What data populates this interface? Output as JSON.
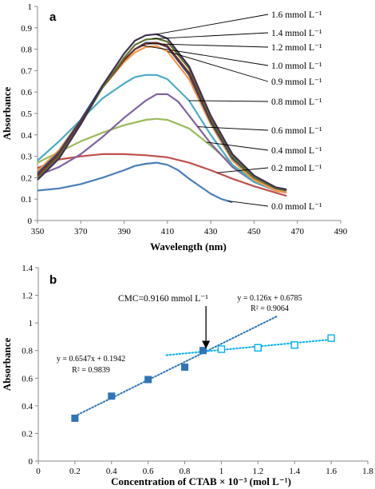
{
  "chart_data": [
    {
      "type": "line",
      "panel_label": "a",
      "xlabel": "Wavelength (nm)",
      "ylabel": "Absorbance",
      "xlim": [
        350,
        490
      ],
      "ylim": [
        0,
        1
      ],
      "x_ticks": [
        350,
        370,
        390,
        410,
        430,
        450,
        470,
        490
      ],
      "y_ticks": [
        0,
        0.1,
        0.2,
        0.3,
        0.4,
        0.5,
        0.6,
        0.7,
        0.8,
        0.9,
        1
      ],
      "grid": false,
      "series": [
        {
          "name": "0.0 mmol L⁻¹",
          "color": "#4a7ebb",
          "points": [
            [
              350,
              0.14
            ],
            [
              360,
              0.15
            ],
            [
              370,
              0.17
            ],
            [
              380,
              0.2
            ],
            [
              390,
              0.235
            ],
            [
              395,
              0.255
            ],
            [
              400,
              0.265
            ],
            [
              405,
              0.27
            ],
            [
              410,
              0.26
            ],
            [
              415,
              0.235
            ],
            [
              420,
              0.195
            ],
            [
              425,
              0.16
            ],
            [
              430,
              0.125
            ],
            [
              435,
              0.1
            ],
            [
              440,
              0.085
            ]
          ]
        },
        {
          "name": "0.2 mmol L⁻¹",
          "color": "#c0504d",
          "points": [
            [
              350,
              0.245
            ],
            [
              360,
              0.285
            ],
            [
              370,
              0.3
            ],
            [
              380,
              0.31
            ],
            [
              390,
              0.31
            ],
            [
              400,
              0.305
            ],
            [
              410,
              0.295
            ],
            [
              420,
              0.27
            ],
            [
              430,
              0.235
            ],
            [
              440,
              0.195
            ],
            [
              450,
              0.16
            ],
            [
              460,
              0.13
            ],
            [
              465,
              0.115
            ]
          ]
        },
        {
          "name": "0.4 mmol L⁻¹",
          "color": "#9bbb59",
          "points": [
            [
              350,
              0.27
            ],
            [
              360,
              0.32
            ],
            [
              370,
              0.37
            ],
            [
              380,
              0.41
            ],
            [
              390,
              0.445
            ],
            [
              400,
              0.47
            ],
            [
              405,
              0.475
            ],
            [
              410,
              0.47
            ],
            [
              420,
              0.43
            ],
            [
              430,
              0.35
            ],
            [
              440,
              0.26
            ],
            [
              450,
              0.19
            ],
            [
              460,
              0.15
            ],
            [
              465,
              0.14
            ]
          ]
        },
        {
          "name": "0.6 mmol L⁻¹",
          "color": "#8064a2",
          "points": [
            [
              350,
              0.21
            ],
            [
              360,
              0.25
            ],
            [
              370,
              0.31
            ],
            [
              380,
              0.39
            ],
            [
              390,
              0.48
            ],
            [
              400,
              0.56
            ],
            [
              405,
              0.59
            ],
            [
              410,
              0.59
            ],
            [
              415,
              0.555
            ],
            [
              420,
              0.49
            ],
            [
              430,
              0.36
            ],
            [
              440,
              0.25
            ],
            [
              450,
              0.18
            ],
            [
              460,
              0.14
            ],
            [
              465,
              0.13
            ]
          ]
        },
        {
          "name": "0.8 mmol L⁻¹",
          "color": "#4bacc6",
          "points": [
            [
              350,
              0.28
            ],
            [
              360,
              0.37
            ],
            [
              370,
              0.47
            ],
            [
              380,
              0.57
            ],
            [
              390,
              0.64
            ],
            [
              395,
              0.67
            ],
            [
              400,
              0.68
            ],
            [
              405,
              0.68
            ],
            [
              410,
              0.66
            ],
            [
              420,
              0.56
            ],
            [
              430,
              0.4
            ],
            [
              440,
              0.26
            ],
            [
              450,
              0.18
            ],
            [
              460,
              0.14
            ],
            [
              465,
              0.13
            ]
          ]
        },
        {
          "name": "0.9 mmol L⁻¹",
          "color": "#f79646",
          "points": [
            [
              350,
              0.23
            ],
            [
              360,
              0.33
            ],
            [
              370,
              0.47
            ],
            [
              380,
              0.62
            ],
            [
              390,
              0.74
            ],
            [
              395,
              0.785
            ],
            [
              400,
              0.81
            ],
            [
              405,
              0.815
            ],
            [
              410,
              0.79
            ],
            [
              420,
              0.66
            ],
            [
              430,
              0.45
            ],
            [
              440,
              0.28
            ],
            [
              450,
              0.19
            ],
            [
              460,
              0.14
            ],
            [
              465,
              0.13
            ]
          ]
        },
        {
          "name": "1.0 mmol L⁻¹",
          "color": "#2c4d75",
          "points": [
            [
              350,
              0.22
            ],
            [
              360,
              0.32
            ],
            [
              370,
              0.47
            ],
            [
              380,
              0.63
            ],
            [
              390,
              0.75
            ],
            [
              395,
              0.8
            ],
            [
              400,
              0.83
            ],
            [
              405,
              0.83
            ],
            [
              410,
              0.81
            ],
            [
              420,
              0.68
            ],
            [
              430,
              0.46
            ],
            [
              440,
              0.29
            ],
            [
              450,
              0.2
            ],
            [
              460,
              0.15
            ],
            [
              465,
              0.14
            ]
          ]
        },
        {
          "name": "1.2 mmol L⁻¹",
          "color": "#772c2a",
          "points": [
            [
              350,
              0.21
            ],
            [
              360,
              0.31
            ],
            [
              370,
              0.46
            ],
            [
              380,
              0.62
            ],
            [
              390,
              0.75
            ],
            [
              395,
              0.8
            ],
            [
              400,
              0.825
            ],
            [
              405,
              0.83
            ],
            [
              410,
              0.815
            ],
            [
              420,
              0.69
            ],
            [
              430,
              0.47
            ],
            [
              440,
              0.3
            ],
            [
              450,
              0.2
            ],
            [
              460,
              0.15
            ],
            [
              465,
              0.14
            ]
          ]
        },
        {
          "name": "1.4 mmol L⁻¹",
          "color": "#5f7530",
          "points": [
            [
              350,
              0.2
            ],
            [
              360,
              0.3
            ],
            [
              370,
              0.45
            ],
            [
              380,
              0.62
            ],
            [
              390,
              0.76
            ],
            [
              395,
              0.82
            ],
            [
              400,
              0.845
            ],
            [
              405,
              0.85
            ],
            [
              410,
              0.835
            ],
            [
              420,
              0.71
            ],
            [
              430,
              0.48
            ],
            [
              440,
              0.3
            ],
            [
              450,
              0.2
            ],
            [
              460,
              0.15
            ],
            [
              465,
              0.14
            ]
          ]
        },
        {
          "name": "1.6 mmol L⁻¹",
          "color": "#403152",
          "points": [
            [
              350,
              0.19
            ],
            [
              360,
              0.29
            ],
            [
              370,
              0.45
            ],
            [
              380,
              0.63
            ],
            [
              390,
              0.78
            ],
            [
              395,
              0.84
            ],
            [
              400,
              0.865
            ],
            [
              405,
              0.87
            ],
            [
              410,
              0.85
            ],
            [
              420,
              0.72
            ],
            [
              430,
              0.49
            ],
            [
              440,
              0.31
            ],
            [
              450,
              0.21
            ],
            [
              460,
              0.155
            ],
            [
              465,
              0.145
            ]
          ]
        }
      ]
    },
    {
      "type": "scatter",
      "panel_label": "b",
      "xlabel": "Concentration of CTAB × 10⁻³ (mol L⁻¹)",
      "ylabel": "Absorbance",
      "xlim": [
        0,
        1.8
      ],
      "ylim": [
        0,
        1.4
      ],
      "x_ticks": [
        0,
        0.2,
        0.4,
        0.6,
        0.8,
        1,
        1.2,
        1.4,
        1.6,
        1.8
      ],
      "y_ticks": [
        0,
        0.2,
        0.4,
        0.6,
        0.8,
        1,
        1.2,
        1.4
      ],
      "grid": false,
      "series": [
        {
          "color": "#2e75b6",
          "marker": "filled-square",
          "x": [
            0.2,
            0.4,
            0.6,
            0.8,
            0.9
          ],
          "y": [
            0.31,
            0.47,
            0.59,
            0.68,
            0.8
          ]
        },
        {
          "color": "#00b0f0",
          "marker": "open-square",
          "x": [
            1.0,
            1.2,
            1.4,
            1.6
          ],
          "y": [
            0.81,
            0.82,
            0.84,
            0.89
          ]
        }
      ],
      "trendlines": [
        {
          "slope": 0.6547,
          "intercept": 0.1942,
          "x_range": [
            0.2,
            1.3
          ],
          "color": "#2e75b6",
          "equation": "y = 0.6547x + 0.1942",
          "r2": "R² = 0.9839"
        },
        {
          "slope": 0.126,
          "intercept": 0.6785,
          "x_range": [
            0.7,
            1.6
          ],
          "color": "#00b0f0",
          "equation": "y = 0.126x + 0.6785",
          "r2": "R² = 0.9064"
        }
      ],
      "annotation": {
        "text": "CMC=0.9160 mmol L⁻¹",
        "x": 0.916,
        "y": 0.79
      }
    }
  ]
}
